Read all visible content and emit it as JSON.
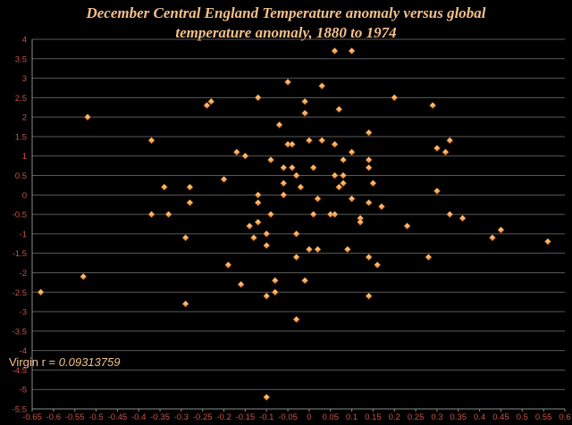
{
  "chart_data": {
    "type": "scatter",
    "title_line1": "December Central England Temperature anomaly versus global",
    "title_line2": "temperature anomaly, 1880 to 1974",
    "annotation_prefix": "Virgin r = ",
    "annotation_value": "0.09313759",
    "xlim": [
      -0.65,
      0.6
    ],
    "ylim": [
      -5.5,
      4
    ],
    "x_ticks": [
      "-0.65",
      "-0.6",
      "-0.55",
      "-0.5",
      "-0.45",
      "-0.4",
      "-0.35",
      "-0.3",
      "-0.25",
      "-0.2",
      "-0.15",
      "-0.1",
      "-0.05",
      "0",
      "0.05",
      "0.1",
      "0.15",
      "0.2",
      "0.25",
      "0.3",
      "0.35",
      "0.4",
      "0.45",
      "0.5",
      "0.55",
      "0.6"
    ],
    "y_ticks": [
      "4",
      "3.5",
      "3",
      "2.5",
      "2",
      "1.5",
      "1",
      "0.5",
      "0",
      "-0.5",
      "-1",
      "-1.5",
      "-2",
      "-2.5",
      "-3",
      "-3.5",
      "-4",
      "-4.5",
      "-5",
      "-5.5"
    ],
    "grid": true,
    "colors": {
      "background": "#000000",
      "grid": "#5a5a5a",
      "marker": "#f5a650",
      "title": "#f5c08a",
      "ticks": "#c8534a"
    },
    "points": [
      [
        -0.63,
        -2.5
      ],
      [
        -0.53,
        -2.1
      ],
      [
        -0.52,
        2.0
      ],
      [
        -0.37,
        1.4
      ],
      [
        -0.37,
        -0.5
      ],
      [
        -0.34,
        0.2
      ],
      [
        -0.33,
        -0.5
      ],
      [
        -0.29,
        -1.1
      ],
      [
        -0.29,
        -2.8
      ],
      [
        -0.28,
        -0.2
      ],
      [
        -0.28,
        0.2
      ],
      [
        -0.24,
        2.3
      ],
      [
        -0.23,
        2.4
      ],
      [
        -0.2,
        0.4
      ],
      [
        -0.19,
        -1.8
      ],
      [
        -0.17,
        1.1
      ],
      [
        -0.16,
        -2.3
      ],
      [
        -0.15,
        1.0
      ],
      [
        -0.14,
        -0.8
      ],
      [
        -0.13,
        -1.1
      ],
      [
        -0.12,
        2.5
      ],
      [
        -0.12,
        0.0
      ],
      [
        -0.12,
        -0.2
      ],
      [
        -0.12,
        -0.7
      ],
      [
        -0.1,
        -1.3
      ],
      [
        -0.1,
        -1.0
      ],
      [
        -0.1,
        -2.6
      ],
      [
        -0.1,
        -5.2
      ],
      [
        -0.09,
        0.9
      ],
      [
        -0.09,
        -0.5
      ],
      [
        -0.08,
        -2.2
      ],
      [
        -0.08,
        -2.5
      ],
      [
        -0.07,
        1.8
      ],
      [
        -0.06,
        0.7
      ],
      [
        -0.06,
        0.3
      ],
      [
        -0.06,
        0.0
      ],
      [
        -0.05,
        2.9
      ],
      [
        -0.05,
        1.3
      ],
      [
        -0.04,
        1.3
      ],
      [
        -0.04,
        0.7
      ],
      [
        -0.03,
        0.5
      ],
      [
        -0.03,
        -1.0
      ],
      [
        -0.03,
        -1.6
      ],
      [
        -0.03,
        -3.2
      ],
      [
        -0.02,
        0.2
      ],
      [
        -0.01,
        2.4
      ],
      [
        -0.01,
        2.1
      ],
      [
        -0.01,
        -2.2
      ],
      [
        0.0,
        1.4
      ],
      [
        0.0,
        -1.4
      ],
      [
        0.01,
        0.7
      ],
      [
        0.01,
        -0.5
      ],
      [
        0.02,
        -0.1
      ],
      [
        0.02,
        -1.4
      ],
      [
        0.03,
        2.8
      ],
      [
        0.03,
        1.4
      ],
      [
        0.05,
        -0.5
      ],
      [
        0.06,
        3.7
      ],
      [
        0.06,
        1.3
      ],
      [
        0.06,
        0.5
      ],
      [
        0.06,
        -0.5
      ],
      [
        0.07,
        2.2
      ],
      [
        0.07,
        0.2
      ],
      [
        0.08,
        0.9
      ],
      [
        0.08,
        0.5
      ],
      [
        0.08,
        0.3
      ],
      [
        0.09,
        -1.4
      ],
      [
        0.1,
        3.7
      ],
      [
        0.1,
        1.1
      ],
      [
        0.1,
        -0.1
      ],
      [
        0.12,
        -0.6
      ],
      [
        0.12,
        -0.7
      ],
      [
        0.14,
        1.6
      ],
      [
        0.14,
        0.9
      ],
      [
        0.14,
        0.7
      ],
      [
        0.14,
        -0.2
      ],
      [
        0.14,
        -1.6
      ],
      [
        0.14,
        -2.6
      ],
      [
        0.15,
        0.3
      ],
      [
        0.16,
        -1.8
      ],
      [
        0.17,
        -0.3
      ],
      [
        0.2,
        2.5
      ],
      [
        0.23,
        -0.8
      ],
      [
        0.28,
        -1.6
      ],
      [
        0.29,
        2.3
      ],
      [
        0.3,
        1.2
      ],
      [
        0.3,
        0.1
      ],
      [
        0.32,
        1.1
      ],
      [
        0.33,
        1.4
      ],
      [
        0.33,
        -0.5
      ],
      [
        0.36,
        -0.6
      ],
      [
        0.43,
        -1.1
      ],
      [
        0.45,
        -0.9
      ],
      [
        0.56,
        -1.2
      ]
    ]
  }
}
